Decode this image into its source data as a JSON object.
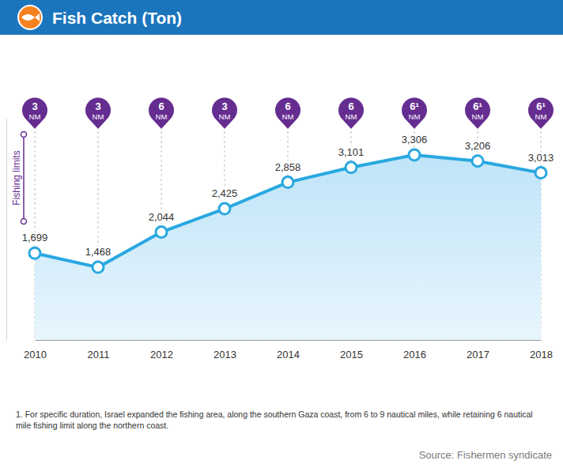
{
  "chart_data": {
    "type": "line",
    "title": "Fish Catch (Ton)",
    "categories": [
      "2010",
      "2011",
      "2012",
      "2013",
      "2014",
      "2015",
      "2016",
      "2017",
      "2018"
    ],
    "values": [
      1699,
      1468,
      2044,
      2425,
      2858,
      3101,
      3306,
      3206,
      3013
    ],
    "value_labels": [
      "1,699",
      "1,468",
      "2,044",
      "2,425",
      "2,858",
      "3,101",
      "3,306",
      "3,206",
      "3,013"
    ],
    "color": "#29a8e0",
    "marker": "circle",
    "data_labels": true,
    "grid": true,
    "tick_labels": "x",
    "ylim": [
      280,
      3900
    ],
    "limits_title": "Fishing limits",
    "limits": [
      "3",
      "3",
      "6",
      "3",
      "6",
      "6",
      "6¹",
      "6¹",
      "6¹"
    ],
    "limits_unit": "NM",
    "footnote": "1. For specific duration, Israel expanded the fishing area, along the southern Gaza coast, from 6 to 9 nautical miles, while retaining 6 nautical mile fishing limit along the northern coast.",
    "source": "Source: Fishermen syndicate"
  }
}
